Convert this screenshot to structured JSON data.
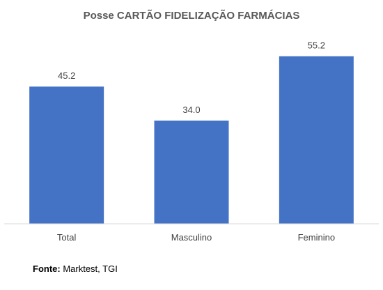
{
  "chart_data": {
    "type": "bar",
    "title": "Posse CARTÃO FIDELIZAÇÃO FARMÁCIAS",
    "categories": [
      "Total",
      "Masculino",
      "Feminino"
    ],
    "values": [
      45.2,
      34.0,
      55.2
    ],
    "data_labels": [
      "45.2",
      "34.0",
      "55.2"
    ],
    "xlabel": "",
    "ylabel": "",
    "ylim": [
      0,
      65
    ],
    "grid": false,
    "legend": "none",
    "bar_color": "#4472C4"
  },
  "source": {
    "label": "Fonte:",
    "text": " Marktest, TGI"
  }
}
